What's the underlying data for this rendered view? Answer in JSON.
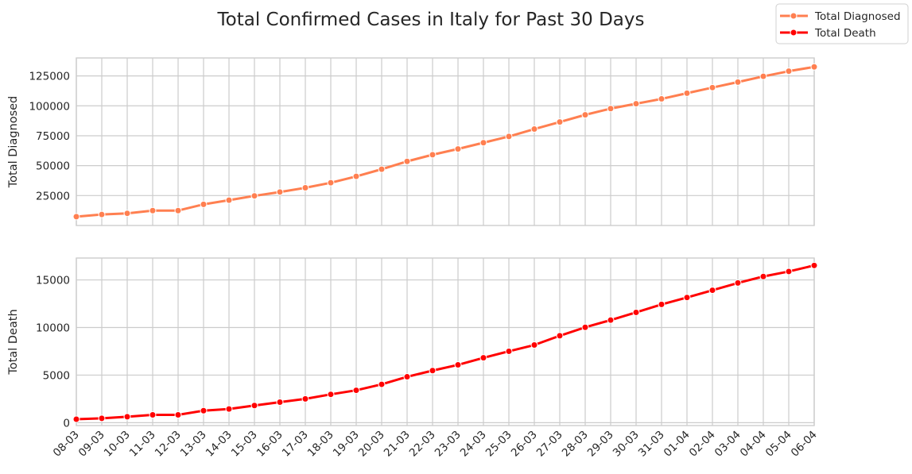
{
  "chart_data": {
    "type": "line",
    "title": "Total Confirmed Cases in Italy for Past 30 Days",
    "x_labels": [
      "08-03",
      "09-03",
      "10-03",
      "11-03",
      "12-03",
      "13-03",
      "14-03",
      "15-03",
      "16-03",
      "17-03",
      "18-03",
      "19-03",
      "20-03",
      "21-03",
      "22-03",
      "23-03",
      "24-03",
      "25-03",
      "26-03",
      "27-03",
      "28-03",
      "29-03",
      "30-03",
      "31-03",
      "01-04",
      "02-04",
      "03-04",
      "04-04",
      "05-04",
      "06-04"
    ],
    "legend": {
      "placement": "top-right",
      "entries": [
        "Total Diagnosed",
        "Total Death"
      ]
    },
    "grid": true,
    "panels": [
      {
        "ylabel": "Total Diagnosed",
        "yticks": [
          25000,
          50000,
          75000,
          100000,
          125000
        ],
        "ylim": [
          0,
          140000
        ],
        "series": [
          {
            "name": "Total Diagnosed",
            "color": "#ff7f50",
            "values": [
              7375,
              9172,
              10149,
              12462,
              12462,
              17660,
              21157,
              24747,
              27980,
              31506,
              35713,
              41035,
              47021,
              53578,
              59138,
              63927,
              69176,
              74386,
              80589,
              86498,
              92472,
              97689,
              101739,
              105792,
              110574,
              115242,
              119827,
              124632,
              128948,
              132547
            ]
          }
        ]
      },
      {
        "ylabel": "Total Death",
        "yticks": [
          0,
          5000,
          10000,
          15000
        ],
        "ylim": [
          -300,
          17300
        ],
        "series": [
          {
            "name": "Total Death",
            "color": "#ff0000",
            "values": [
              366,
              463,
              631,
              827,
              827,
              1266,
              1441,
              1809,
              2158,
              2503,
              2978,
              3405,
              4032,
              4825,
              5476,
              6077,
              6820,
              7503,
              8165,
              9134,
              10023,
              10779,
              11591,
              12428,
              13155,
              13915,
              14681,
              15362,
              15887,
              16523
            ]
          }
        ]
      }
    ]
  }
}
